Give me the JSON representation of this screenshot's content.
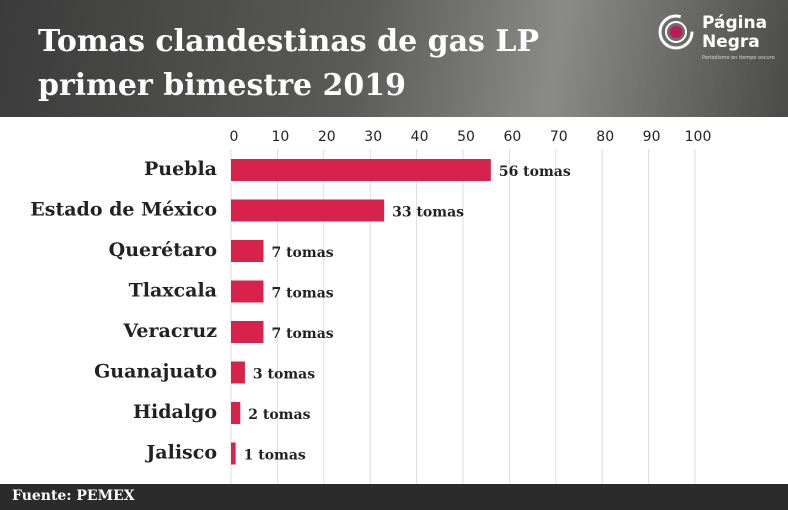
{
  "chart_data": {
    "type": "hbar",
    "title": "Tomas clandestinas de gas LP primer bimestre 2019",
    "brand": "Página Negra",
    "tagline": "Periodismo en tiempo oscuro",
    "source": "Fuente: PEMEX",
    "categories": [
      "Puebla",
      "Estado de México",
      "Querétaro",
      "Tlaxcala",
      "Veracruz",
      "Guanajuato",
      "Hidalgo",
      "Jalisco"
    ],
    "values": [
      56,
      33,
      7,
      7,
      7,
      3,
      2,
      1
    ],
    "value_labels": [
      "56 tomas",
      "33 tomas",
      "7 tomas",
      "7 tomas",
      "7 tomas",
      "3 tomas",
      "2 tomas",
      "1 tomas"
    ],
    "color": "#d7234b",
    "xlim": [
      0,
      100
    ],
    "xticks": [
      0,
      10,
      20,
      30,
      40,
      50,
      60,
      70,
      80,
      90,
      100
    ],
    "grid": true
  }
}
